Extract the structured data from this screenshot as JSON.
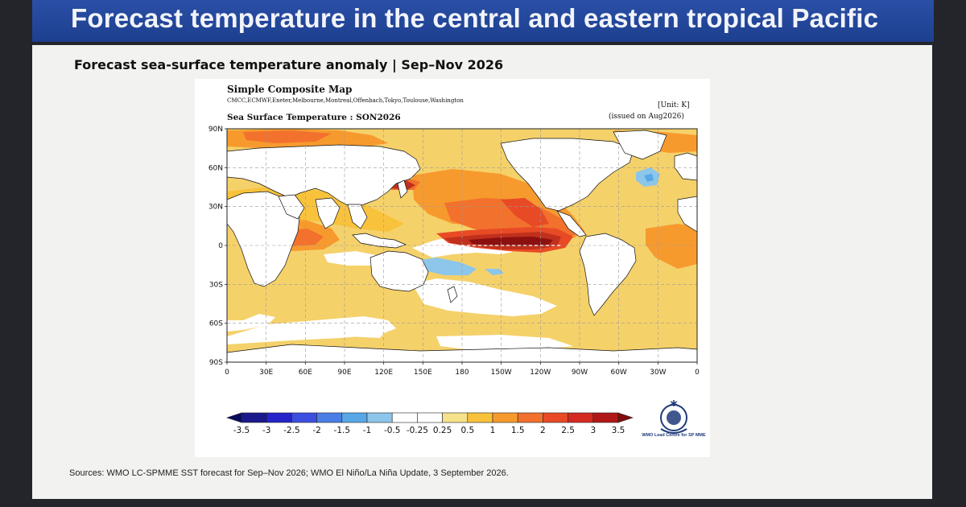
{
  "banner": {
    "title": "Forecast temperature in the central and eastern tropical Pacific"
  },
  "slide": {
    "subtitle": "Forecast sea-surface temperature anomaly | Sep–Nov 2026",
    "sources": "Sources: WMO LC-SPMME SST forecast for Sep–Nov 2026; WMO El Niño/La Niña Update, 3 September 2026."
  },
  "figure": {
    "heading": "Simple Composite Map",
    "models": "CMCC,ECMWF,Exeter,Melbourne,Montreal,Offenbach,Tokyo,Toulouse,Washington",
    "unit": "[Unit: K]",
    "issued": "(issued on Aug2026)",
    "map_title": "Sea Surface Temperature : SON2026",
    "lat_labels": [
      "90N",
      "60N",
      "30N",
      "0",
      "30S",
      "60S",
      "90S"
    ],
    "lon_labels": [
      "0",
      "30E",
      "60E",
      "90E",
      "120E",
      "150E",
      "180",
      "150W",
      "120W",
      "90W",
      "60W",
      "30W",
      "0"
    ],
    "colorbar": {
      "labels": [
        "-3.5",
        "-3",
        "-2.5",
        "-2",
        "-1.5",
        "-1",
        "-0.5",
        "-0.25",
        "0.25",
        "0.5",
        "1",
        "1.5",
        "2",
        "2.5",
        "3",
        "3.5"
      ],
      "colors": [
        "#1a1a8c",
        "#2424c8",
        "#3c4ee0",
        "#4a7ee6",
        "#58a8e8",
        "#8cc6ea",
        "#ffffff",
        "#ffffff",
        "#f5e28a",
        "#f8c23c",
        "#f79a2e",
        "#f2712c",
        "#e84a26",
        "#d42a22",
        "#b01818"
      ],
      "low_arrow": "#0a0a5a",
      "high_arrow": "#800c0c"
    },
    "logo_caption": "WMO Lead Centre for SP MME"
  },
  "map": {
    "colors": {
      "ocean_base": "#f5d16a",
      "land": "#ffffff",
      "neutral": "#ffffff",
      "warm_05": "#f8c23c",
      "warm_1": "#f79a2e",
      "warm_15": "#f2712c",
      "warm_2": "#e84a26",
      "warm_25": "#c0301c",
      "warm_3": "#8c1010",
      "cool_1": "#8cc6ea",
      "cool_15": "#58a8e8"
    }
  }
}
